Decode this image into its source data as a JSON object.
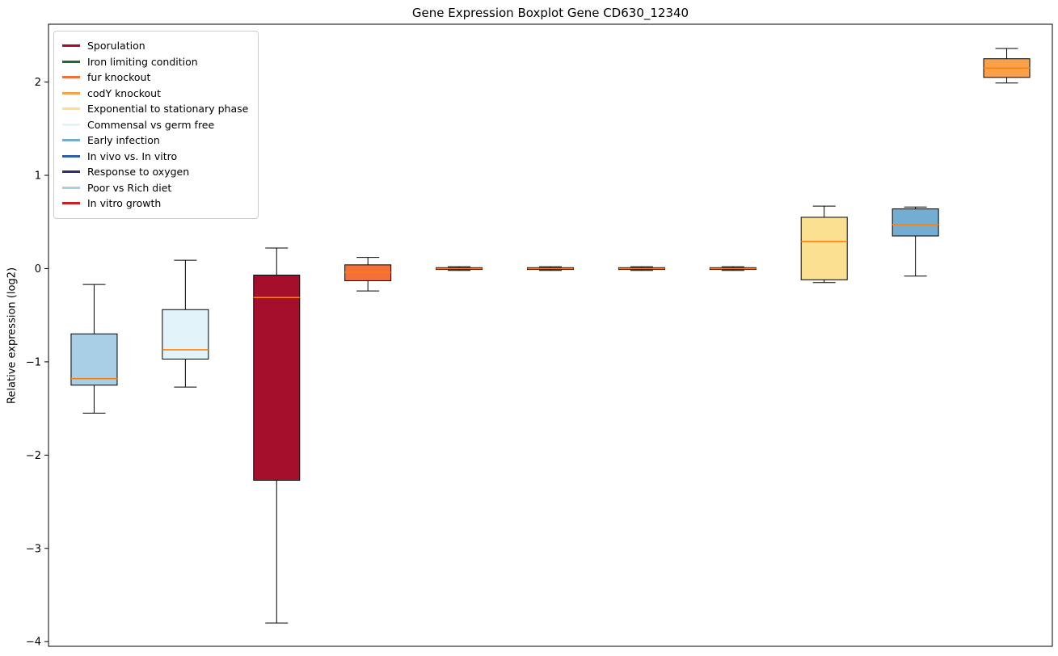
{
  "chart_data": {
    "type": "boxplot",
    "title": "Gene Expression Boxplot Gene CD630_12340",
    "xlabel": "",
    "ylabel": "Relative expression (log2)",
    "ylim": [
      -4.05,
      2.62
    ],
    "yticks": [
      -4,
      -3,
      -2,
      -1,
      0,
      1,
      2
    ],
    "grid": false,
    "legend_position": "upper-left",
    "median_color": "#ff7f0e",
    "box_edge_color": "#000000",
    "boxes": [
      {
        "condition": "Poor vs Rich diet",
        "color": "#a8cfe5",
        "whisker_low": -1.55,
        "q1": -1.25,
        "median": -1.18,
        "q3": -0.7,
        "whisker_high": -0.17
      },
      {
        "condition": "Commensal vs germ free",
        "color": "#e3f3fa",
        "whisker_low": -1.27,
        "q1": -0.97,
        "median": -0.87,
        "q3": -0.44,
        "whisker_high": 0.09
      },
      {
        "condition": "Sporulation",
        "color": "#a50f2c",
        "whisker_low": -3.8,
        "q1": -2.27,
        "median": -0.31,
        "q3": -0.07,
        "whisker_high": 0.22
      },
      {
        "condition": "fur knockout",
        "color": "#f4703b",
        "whisker_low": -0.24,
        "q1": -0.13,
        "median": -0.04,
        "q3": 0.04,
        "whisker_high": 0.12
      },
      {
        "condition": "Iron limiting condition",
        "color": "#1c6b2f",
        "whisker_low": -0.02,
        "q1": -0.01,
        "median": 0.0,
        "q3": 0.01,
        "whisker_high": 0.02
      },
      {
        "condition": "In vivo vs. In vitro",
        "color": "#2f5fa8",
        "whisker_low": -0.02,
        "q1": -0.01,
        "median": 0.0,
        "q3": 0.01,
        "whisker_high": 0.02
      },
      {
        "condition": "Response to oxygen",
        "color": "#2f2f6e",
        "whisker_low": -0.02,
        "q1": -0.01,
        "median": 0.0,
        "q3": 0.01,
        "whisker_high": 0.02
      },
      {
        "condition": "In vitro growth",
        "color": "#cc1f1f",
        "whisker_low": -0.02,
        "q1": -0.01,
        "median": 0.0,
        "q3": 0.01,
        "whisker_high": 0.02
      },
      {
        "condition": "Exponential to stationary phase",
        "color": "#fce091",
        "whisker_low": -0.15,
        "q1": -0.12,
        "median": 0.29,
        "q3": 0.55,
        "whisker_high": 0.67
      },
      {
        "condition": "Early infection",
        "color": "#74add2",
        "whisker_low": -0.08,
        "q1": 0.35,
        "median": 0.47,
        "q3": 0.64,
        "whisker_high": 0.66
      },
      {
        "condition": "codY knockout",
        "color": "#f9a04a",
        "whisker_low": 1.99,
        "q1": 2.05,
        "median": 2.15,
        "q3": 2.25,
        "whisker_high": 2.36
      }
    ]
  },
  "legend": [
    {
      "label": "Sporulation",
      "color": "#a50f2c"
    },
    {
      "label": "Iron limiting condition",
      "color": "#1c6b2f"
    },
    {
      "label": "fur knockout",
      "color": "#f4703b"
    },
    {
      "label": "codY knockout",
      "color": "#f9a04a"
    },
    {
      "label": "Exponential to stationary phase",
      "color": "#fce091"
    },
    {
      "label": "Commensal vs germ free",
      "color": "#e3f3fa"
    },
    {
      "label": "Early infection",
      "color": "#74add2"
    },
    {
      "label": "In vivo vs. In vitro",
      "color": "#2f5fa8"
    },
    {
      "label": "Response to oxygen",
      "color": "#2f2f6e"
    },
    {
      "label": "Poor vs Rich diet",
      "color": "#a8cfe5"
    },
    {
      "label": "In vitro growth",
      "color": "#cc1f1f"
    }
  ]
}
